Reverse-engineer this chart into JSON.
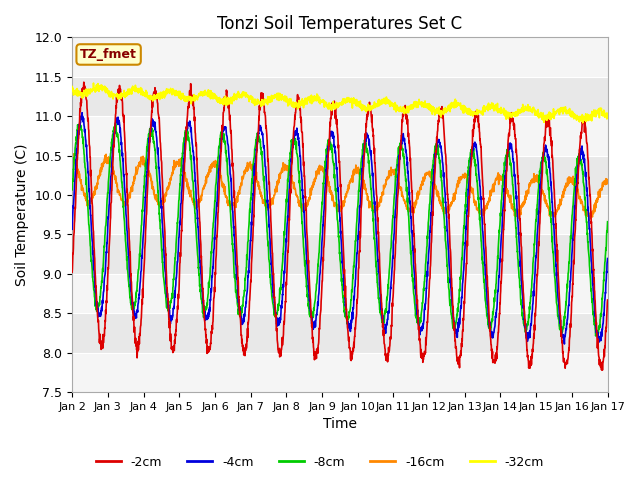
{
  "title": "Tonzi Soil Temperatures Set C",
  "xlabel": "Time",
  "ylabel": "Soil Temperature (C)",
  "ylim": [
    7.5,
    12.0
  ],
  "yticks": [
    7.5,
    8.0,
    8.5,
    9.0,
    9.5,
    10.0,
    10.5,
    11.0,
    11.5,
    12.0
  ],
  "xtick_labels": [
    "Jan 2",
    "Jan 3",
    "Jan 4",
    "Jan 5",
    "Jan 6",
    "Jan 7",
    "Jan 8",
    "Jan 9",
    "Jan 10",
    "Jan 11",
    "Jan 12",
    "Jan 13",
    "Jan 14",
    "Jan 15",
    "Jan 16",
    "Jan 17"
  ],
  "legend_label": "TZ_fmet",
  "series_labels": [
    "-2cm",
    "-4cm",
    "-8cm",
    "-16cm",
    "-32cm"
  ],
  "series_colors": [
    "#dd0000",
    "#0000dd",
    "#00cc00",
    "#ff8800",
    "#ffff00"
  ],
  "line_width": 1.2,
  "background_color": "#ffffff",
  "band_colors": [
    "#f5f5f5",
    "#e8e8e8"
  ]
}
